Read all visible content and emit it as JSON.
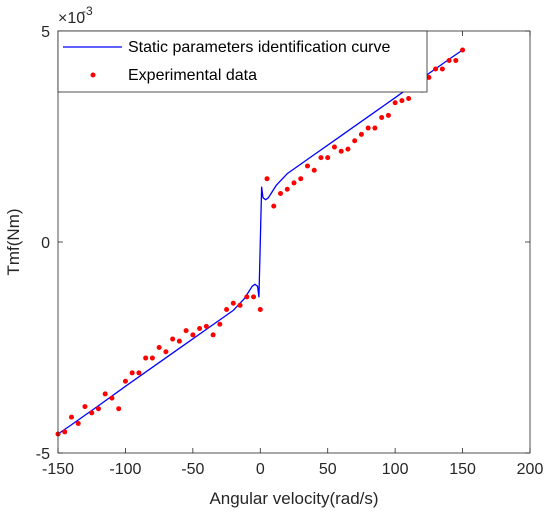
{
  "chart_data": {
    "type": "line",
    "title": "",
    "xlabel": "Angular velocity(rad/s)",
    "ylabel": "Tmf(Nm)",
    "xlim": [
      -150,
      200
    ],
    "ylim": [
      -5,
      5
    ],
    "xticks": [
      -150,
      -100,
      -50,
      0,
      50,
      100,
      150,
      200
    ],
    "xtick_labels": [
      "-150",
      "-100",
      "-50",
      "0",
      "50",
      "100",
      "150",
      "200"
    ],
    "yticks": [
      -5,
      0,
      5
    ],
    "ytick_labels": [
      "-5",
      "0",
      "5"
    ],
    "y_exponent_base": "×10",
    "y_exponent_power": "-3",
    "y_scale_multiplier": 0.001,
    "grid": false,
    "legend_position": "top",
    "series": [
      {
        "name": "Static parameters identification curve",
        "kind": "line",
        "color": "#0000ff",
        "x": [
          -150,
          -140,
          -120,
          -100,
          -80,
          -60,
          -40,
          -20,
          -12,
          -8,
          -6,
          -4,
          -2,
          -1,
          0,
          1,
          2,
          4,
          6,
          8,
          12,
          20,
          40,
          60,
          80,
          100,
          120,
          140,
          150
        ],
        "y": [
          -4.55,
          -4.33,
          -3.88,
          -3.42,
          -2.97,
          -2.52,
          -2.07,
          -1.62,
          -1.35,
          -1.15,
          -1.05,
          -1.0,
          -1.05,
          -1.3,
          0.0,
          1.3,
          1.05,
          1.0,
          1.05,
          1.15,
          1.35,
          1.62,
          2.07,
          2.52,
          2.97,
          3.42,
          3.88,
          4.33,
          4.55
        ]
      },
      {
        "name": "Experimental data",
        "kind": "scatter",
        "color": "#ff0000",
        "x": [
          -150,
          -145,
          -140,
          -135,
          -130,
          -125,
          -120,
          -115,
          -110,
          -105,
          -100,
          -95,
          -90,
          -85,
          -80,
          -75,
          -70,
          -65,
          -60,
          -55,
          -50,
          -45,
          -40,
          -35,
          -30,
          -25,
          -20,
          -15,
          -10,
          -5,
          0,
          5,
          10,
          15,
          20,
          25,
          30,
          35,
          40,
          45,
          50,
          55,
          60,
          65,
          70,
          75,
          80,
          85,
          90,
          95,
          100,
          105,
          110,
          115,
          120,
          125,
          130,
          135,
          140,
          145,
          150
        ],
        "y": [
          -4.55,
          -4.5,
          -4.15,
          -4.3,
          -3.9,
          -4.05,
          -3.95,
          -3.6,
          -3.7,
          -3.95,
          -3.3,
          -3.1,
          -3.1,
          -2.75,
          -2.75,
          -2.5,
          -2.6,
          -2.3,
          -2.35,
          -2.1,
          -2.2,
          -2.05,
          -2.0,
          -2.2,
          -1.95,
          -1.6,
          -1.45,
          -1.5,
          -1.3,
          -1.3,
          -1.6,
          1.5,
          0.85,
          1.15,
          1.25,
          1.4,
          1.5,
          1.8,
          1.7,
          2.0,
          2.0,
          2.25,
          2.15,
          2.2,
          2.4,
          2.55,
          2.7,
          2.7,
          2.95,
          3.0,
          3.3,
          3.35,
          3.4,
          3.7,
          3.6,
          3.9,
          4.1,
          4.1,
          4.3,
          4.3,
          4.55
        ]
      }
    ]
  }
}
